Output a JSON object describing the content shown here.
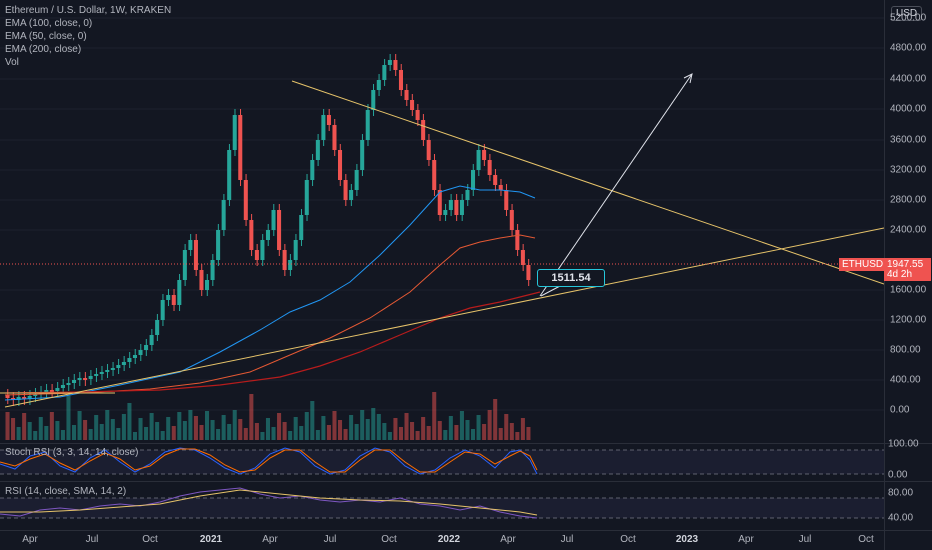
{
  "legend": {
    "symbol": "Ethereum / U.S. Dollar, 1W, KRAKEN",
    "ema100": "EMA (100, close, 0)",
    "ema50": "EMA (50, close, 0)",
    "ema200": "EMA (200, close)",
    "vol": "Vol"
  },
  "price_axis": {
    "currency": "USD",
    "ticks": [
      "5200.00",
      "4800.00",
      "4400.00",
      "4000.00",
      "3600.00",
      "3200.00",
      "2800.00",
      "2400.00",
      "1600.00",
      "1200.00",
      "800.00",
      "400.00",
      "0.00"
    ]
  },
  "current": {
    "symbol": "ETHUSD",
    "price": "1947.55",
    "countdown": "4d 2h"
  },
  "annotation": {
    "price_label": "1511.54"
  },
  "stoch": {
    "title": "Stoch RSI (3, 3, 14, 14, close)",
    "ticks": [
      "100.00",
      "0.00"
    ]
  },
  "rsi": {
    "title": "RSI (14, close, SMA, 14, 2)",
    "ticks": [
      "80.00",
      "40.00"
    ]
  },
  "time_axis": {
    "labels": [
      "Apr",
      "Jul",
      "Oct",
      "2021",
      "Apr",
      "Jul",
      "Oct",
      "2022",
      "Apr",
      "Jul",
      "Oct",
      "2023",
      "Apr",
      "Jul",
      "Oct"
    ]
  },
  "colors": {
    "up": "#26a69a",
    "down": "#ef5350",
    "ema100": "#e55934",
    "ema50": "#2196f3",
    "ema200": "#b71c1c",
    "trendline": "#e6c36a",
    "stoch_k": "#2962ff",
    "stoch_d": "#ff6d00",
    "rsi_line": "#7e57c2",
    "rsi_sma": "#e6c36a"
  }
}
